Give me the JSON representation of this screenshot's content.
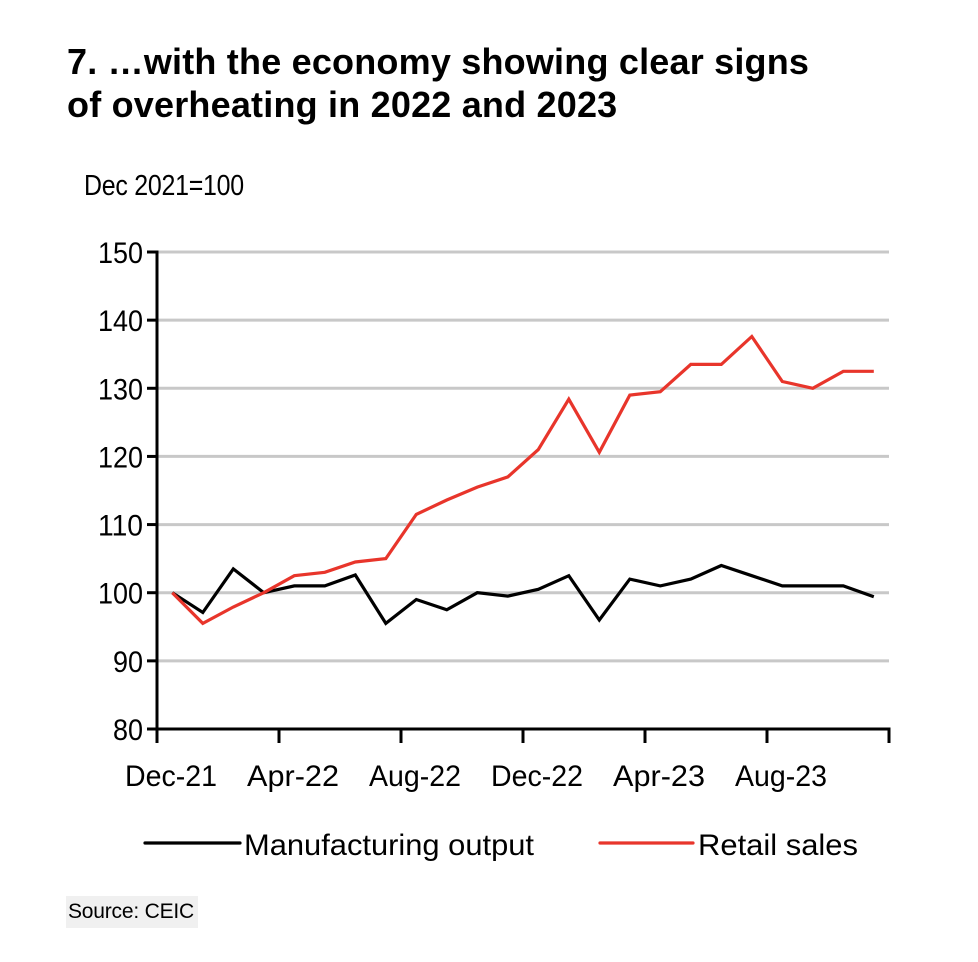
{
  "chart_data": {
    "type": "line",
    "title": "7. …with the economy showing clear signs of overheating in 2022 and 2023",
    "title_lines": [
      "7. …with the economy showing clear signs",
      "of overheating in 2022 and 2023"
    ],
    "ylabel": "Dec 2021=100",
    "xlabel": "",
    "ylim": [
      80,
      150
    ],
    "yticks": [
      80,
      90,
      100,
      110,
      120,
      130,
      140,
      150
    ],
    "ytick_labels": [
      "80",
      "90",
      "100",
      "110",
      "120",
      "130",
      "140",
      "150"
    ],
    "xtick_labels": [
      "Dec-21",
      "Apr-22",
      "Aug-22",
      "Dec-22",
      "Apr-23",
      "Aug-23"
    ],
    "xtick_every_n_months": 4,
    "grid": "horizontal",
    "legend_position": "bottom",
    "x": [
      "Dec-21",
      "Jan-22",
      "Feb-22",
      "Mar-22",
      "Apr-22",
      "May-22",
      "Jun-22",
      "Jul-22",
      "Aug-22",
      "Sep-22",
      "Oct-22",
      "Nov-22",
      "Dec-22",
      "Jan-23",
      "Feb-23",
      "Mar-23",
      "Apr-23",
      "May-23",
      "Jun-23",
      "Jul-23",
      "Aug-23",
      "Sep-23",
      "Oct-23",
      "Nov-23"
    ],
    "series": [
      {
        "name": "Manufacturing output",
        "color": "#000000",
        "values": [
          100,
          97.1,
          103.5,
          100,
          101,
          101,
          102.6,
          95.5,
          99,
          97.5,
          100,
          99.5,
          100.5,
          102.5,
          96,
          102,
          101,
          102,
          104,
          102.5,
          101,
          101,
          101,
          99.4
        ]
      },
      {
        "name": "Retail sales",
        "color": "#e8352b",
        "values": [
          100,
          95.5,
          97.9,
          100,
          102.5,
          103,
          104.5,
          105,
          111.5,
          113.6,
          115.5,
          117,
          121,
          128.4,
          120.6,
          129,
          129.5,
          133.5,
          133.5,
          137.6,
          131,
          130,
          132.5,
          132.5
        ]
      }
    ],
    "source": "Source: CEIC"
  }
}
